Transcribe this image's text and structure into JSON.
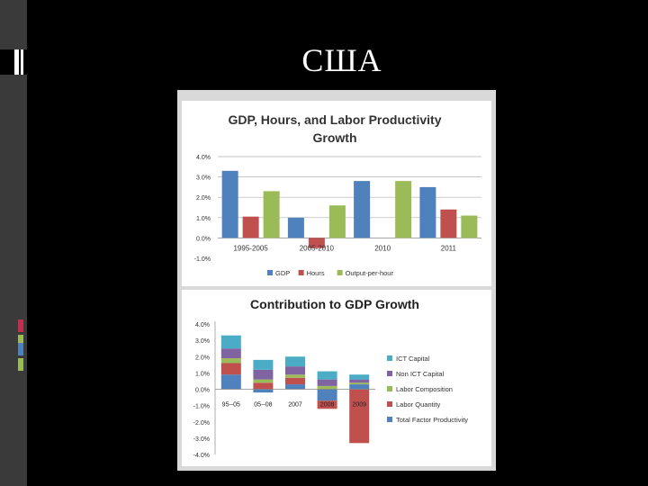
{
  "slide": {
    "title": "США"
  },
  "chart_data": [
    {
      "type": "bar",
      "title_line1": "GDP, Hours, and Labor Productivity",
      "title_line2": "Growth",
      "categories": [
        "1995-2005",
        "2005-2010",
        "2010",
        "2011"
      ],
      "yticks": [
        "4.0%",
        "3.0%",
        "2.0%",
        "1.0%",
        "0.0%",
        "-1.0%"
      ],
      "ylim": [
        -1,
        4
      ],
      "series": [
        {
          "name": "GDP",
          "color": "#4f81bd",
          "values": [
            3.3,
            1.0,
            2.8,
            2.5
          ]
        },
        {
          "name": "Hours",
          "color": "#c0504d",
          "values": [
            1.05,
            -0.5,
            null,
            1.4
          ]
        },
        {
          "name": "Output-per-hour",
          "color": "#9bbb59",
          "values": [
            2.3,
            1.6,
            2.8,
            1.1
          ]
        }
      ]
    },
    {
      "type": "stacked-bar",
      "title": "Contribution to GDP Growth",
      "categories": [
        "95--05",
        "05--08",
        "2007",
        "2008",
        "2009"
      ],
      "yticks": [
        "4.0%",
        "3.0%",
        "2.0%",
        "1.0%",
        "0.0%",
        "-1.0%",
        "-2.0%",
        "-3.0%",
        "-4.0%"
      ],
      "ylim": [
        -4,
        4
      ],
      "series": [
        {
          "name": "Total Factor Productivity",
          "color": "#4f81bd",
          "values": [
            0.9,
            -0.2,
            0.3,
            -0.7,
            0.3
          ]
        },
        {
          "name": "Labor Quantity",
          "color": "#c0504d",
          "values": [
            0.7,
            0.4,
            0.4,
            -0.5,
            -3.3
          ]
        },
        {
          "name": "Labor Composition",
          "color": "#9bbb59",
          "values": [
            0.3,
            0.2,
            0.2,
            0.2,
            0.1
          ]
        },
        {
          "name": "Non ICT Capital",
          "color": "#8064a2",
          "values": [
            0.6,
            0.6,
            0.5,
            0.4,
            0.2
          ]
        },
        {
          "name": "ICT Capital",
          "color": "#4bacc6",
          "values": [
            0.8,
            0.6,
            0.6,
            0.5,
            0.3
          ]
        }
      ]
    }
  ],
  "accents": [
    "#c0304d",
    "#9bbb59",
    "#4f81bd",
    "#9bbb59"
  ]
}
